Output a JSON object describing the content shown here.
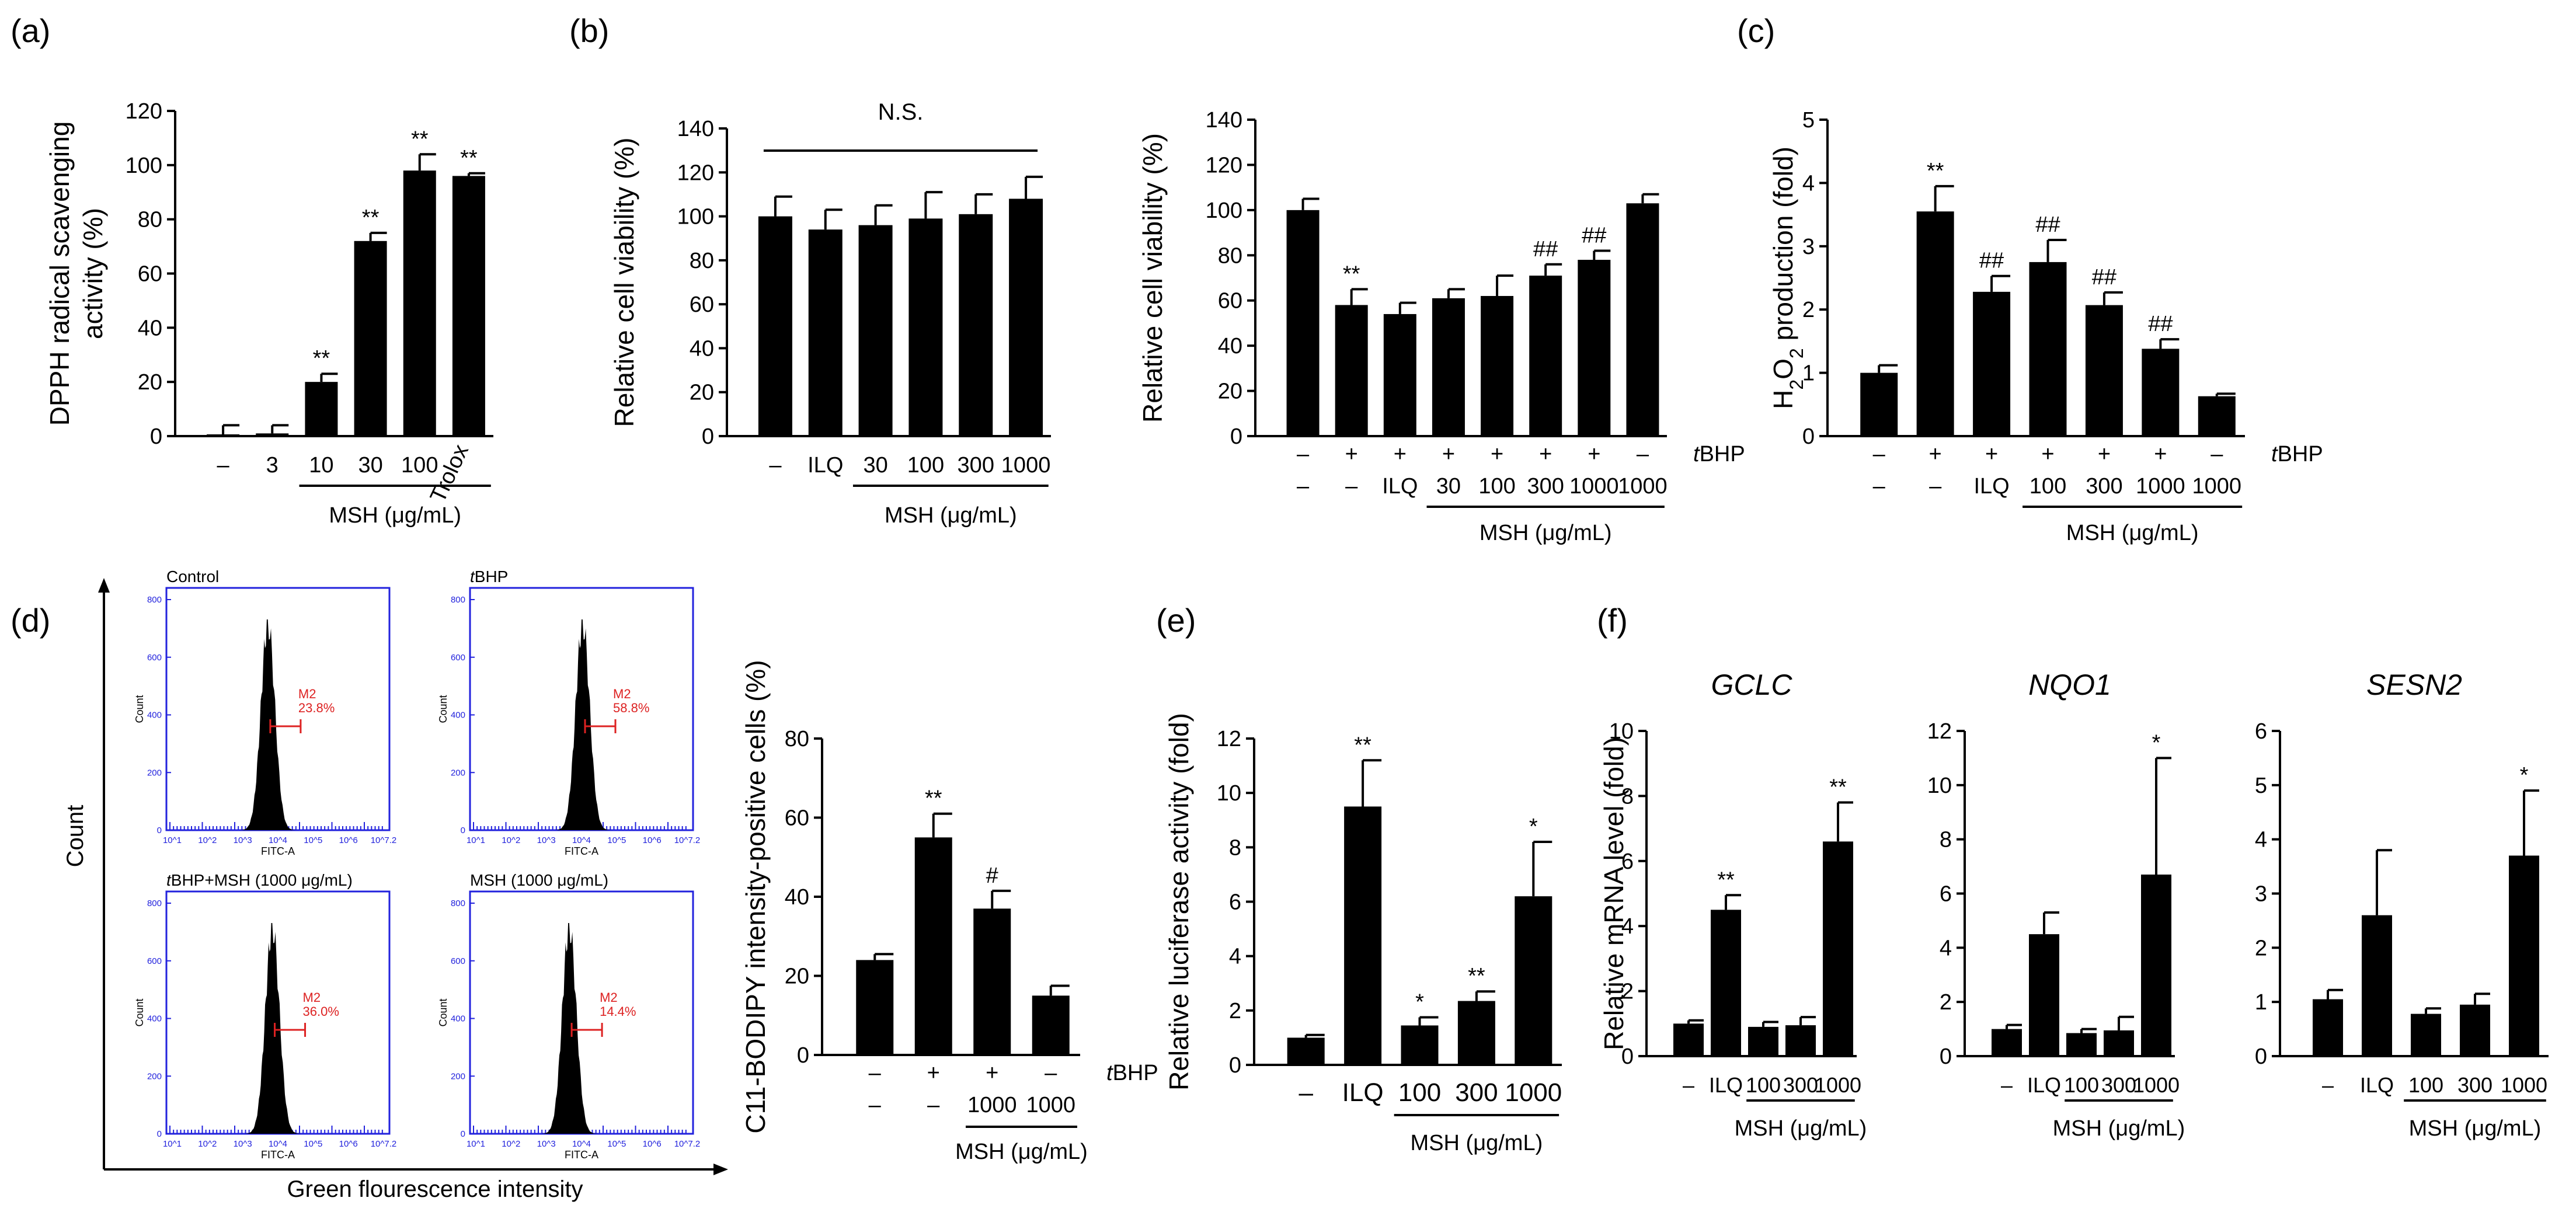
{
  "panel_labels": {
    "a": "(a)",
    "b": "(b)",
    "c": "(c)",
    "d": "(d)",
    "e": "(e)",
    "f": "(f)"
  },
  "chart_data": [
    {
      "id": "a",
      "type": "bar",
      "ylabel": [
        "DPPH radical scavenging",
        "activity (%)"
      ],
      "ylim": [
        0,
        120
      ],
      "yticks": [
        0,
        20,
        40,
        60,
        80,
        100,
        120
      ],
      "categories": [
        "–",
        "3",
        "10",
        "30",
        "100",
        "Trolox"
      ],
      "values": [
        0,
        1,
        20,
        72,
        98,
        96
      ],
      "errors": [
        4,
        3,
        3,
        3,
        6,
        1
      ],
      "annotations": [
        "",
        "",
        "**",
        "**",
        "**",
        "**"
      ],
      "group_label": "MSH (μg/mL)"
    },
    {
      "id": "b1",
      "type": "bar",
      "ylabel": [
        "Relative cell viability (%)"
      ],
      "ylim": [
        0,
        140
      ],
      "yticks": [
        0,
        20,
        40,
        60,
        80,
        100,
        120,
        140
      ],
      "categories": [
        "–",
        "ILQ",
        "30",
        "100",
        "300",
        "1000"
      ],
      "values": [
        100,
        94,
        96,
        99,
        101,
        108
      ],
      "errors": [
        9,
        9,
        9,
        12,
        9,
        10
      ],
      "annotations": [
        "",
        "",
        "",
        "",
        "",
        ""
      ],
      "top_note": "N.S.",
      "group_label": "MSH (μg/mL)"
    },
    {
      "id": "b2",
      "type": "bar",
      "ylabel": [
        "Relative cell viability (%)"
      ],
      "ylim": [
        0,
        140
      ],
      "yticks": [
        0,
        20,
        40,
        60,
        80,
        100,
        120,
        140
      ],
      "row1": [
        "–",
        "+",
        "+",
        "+",
        "+",
        "+",
        "+",
        "–"
      ],
      "row2": [
        "–",
        "–",
        "ILQ",
        "30",
        "100",
        "300",
        "1000",
        "1000"
      ],
      "row1_label": "tBHP",
      "values": [
        100,
        58,
        54,
        61,
        62,
        71,
        78,
        103
      ],
      "errors": [
        5,
        7,
        5,
        4,
        9,
        5,
        4,
        4
      ],
      "annotations": [
        "",
        "**",
        "",
        "",
        "",
        "##",
        "##",
        ""
      ],
      "group_label": "MSH (μg/mL)"
    },
    {
      "id": "c",
      "type": "bar",
      "ylabel": [
        "H2O2 production (fold)"
      ],
      "ylim": [
        0,
        5
      ],
      "yticks": [
        0,
        1,
        2,
        3,
        4,
        5
      ],
      "row1": [
        "–",
        "+",
        "+",
        "+",
        "+",
        "+",
        "–"
      ],
      "row2": [
        "–",
        "–",
        "ILQ",
        "100",
        "300",
        "1000",
        "1000"
      ],
      "row1_label": "tBHP",
      "values": [
        1.0,
        3.55,
        2.28,
        2.75,
        2.07,
        1.38,
        0.63
      ],
      "errors": [
        0.12,
        0.4,
        0.25,
        0.35,
        0.2,
        0.15,
        0.04
      ],
      "annotations": [
        "",
        "**",
        "##",
        "##",
        "##",
        "##",
        ""
      ],
      "group_label": "MSH (μg/mL)"
    },
    {
      "id": "d",
      "type": "bar",
      "ylabel": [
        "C11-BODIPY intensity-positive cells (%)"
      ],
      "ylim": [
        0,
        80
      ],
      "yticks": [
        0,
        20,
        40,
        60,
        80
      ],
      "row1": [
        "–",
        "+",
        "+",
        "–"
      ],
      "row2": [
        "–",
        "–",
        "1000",
        "1000"
      ],
      "row1_label": "tBHP",
      "values": [
        24,
        55,
        37,
        15
      ],
      "errors": [
        1.5,
        6,
        4.5,
        2.5
      ],
      "annotations": [
        "",
        "**",
        "#",
        ""
      ],
      "group_label": "MSH (μg/mL)"
    },
    {
      "id": "e",
      "type": "bar",
      "ylabel": [
        "Relative luciferase activity (fold)"
      ],
      "ylim": [
        0,
        12
      ],
      "yticks": [
        0,
        2,
        4,
        6,
        8,
        10,
        12
      ],
      "categories": [
        "–",
        "ILQ",
        "100",
        "300",
        "1000"
      ],
      "values": [
        1.0,
        9.5,
        1.45,
        2.35,
        6.2
      ],
      "errors": [
        0.1,
        1.7,
        0.3,
        0.35,
        2.0
      ],
      "annotations": [
        "",
        "**",
        "*",
        "**",
        "*"
      ],
      "group_label": "MSH (μg/mL)"
    },
    {
      "id": "f1",
      "type": "bar",
      "title": "GCLC",
      "ylabel": [
        "Relative mRNA level (fold)"
      ],
      "ylim": [
        0,
        10
      ],
      "yticks": [
        0,
        2,
        4,
        6,
        8,
        10
      ],
      "categories": [
        "–",
        "ILQ",
        "100",
        "300",
        "1000"
      ],
      "values": [
        1.0,
        4.5,
        0.9,
        0.95,
        6.6
      ],
      "errors": [
        0.1,
        0.45,
        0.15,
        0.25,
        1.2
      ],
      "annotations": [
        "",
        "**",
        "",
        "",
        "**"
      ],
      "group_label": "MSH (μg/mL)"
    },
    {
      "id": "f2",
      "type": "bar",
      "title": "NQO1",
      "ylabel": [],
      "ylim": [
        0,
        12
      ],
      "yticks": [
        0,
        2,
        4,
        6,
        8,
        10,
        12
      ],
      "categories": [
        "–",
        "ILQ",
        "100",
        "300",
        "1000"
      ],
      "values": [
        1.0,
        4.5,
        0.85,
        0.95,
        6.7
      ],
      "errors": [
        0.15,
        0.8,
        0.15,
        0.5,
        4.3
      ],
      "annotations": [
        "",
        "",
        "",
        "",
        "*"
      ],
      "group_label": "MSH (μg/mL)"
    },
    {
      "id": "f3",
      "type": "bar",
      "title": "SESN2",
      "ylabel": [],
      "ylim": [
        0,
        6
      ],
      "yticks": [
        0,
        1,
        2,
        3,
        4,
        5,
        6
      ],
      "categories": [
        "–",
        "ILQ",
        "100",
        "300",
        "1000"
      ],
      "values": [
        1.05,
        2.6,
        0.78,
        0.95,
        3.7
      ],
      "errors": [
        0.17,
        1.2,
        0.1,
        0.2,
        1.2
      ],
      "annotations": [
        "",
        "",
        "",
        "",
        "*"
      ],
      "group_label": "MSH (μg/mL)"
    }
  ],
  "flow_cytometry": {
    "y_axis_label": "Count",
    "x_axis_label": "Green flourescence intensity",
    "axis_x_label": "FITC-A",
    "axis_y_label": "Count",
    "x_tick_labels": [
      "10^1",
      "10^2",
      "10^3",
      "10^4",
      "10^5",
      "10^6",
      "10^7.2"
    ],
    "y_tick_labels": [
      "0",
      "200",
      "400",
      "600",
      "800"
    ],
    "marker_label": "M2",
    "plots": [
      {
        "title": "Control",
        "percent": "23.8%",
        "peak": 0.45
      },
      {
        "title": "tBHP",
        "percent": "58.8%",
        "peak": 0.5
      },
      {
        "title": "tBHP+MSH (1000 μg/mL)",
        "percent": "36.0%",
        "peak": 0.47
      },
      {
        "title": "MSH (1000 μg/mL)",
        "percent": "14.4%",
        "peak": 0.44
      }
    ]
  },
  "colors": {
    "bar": "#000000",
    "flow_frame": "#2222dd",
    "marker": "#dd2222"
  }
}
